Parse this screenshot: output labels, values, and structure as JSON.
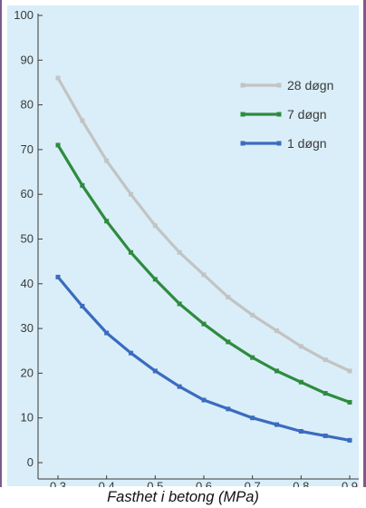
{
  "chart_data": {
    "type": "line",
    "x": [
      0.3,
      0.35,
      0.4,
      0.45,
      0.5,
      0.55,
      0.6,
      0.65,
      0.7,
      0.75,
      0.8,
      0.85,
      0.9
    ],
    "series": [
      {
        "name": "28 døgn",
        "color": "#c3c3c3",
        "values": [
          86,
          76.5,
          67.5,
          60,
          53,
          47,
          42,
          37,
          33,
          29.5,
          26,
          23,
          20.5
        ]
      },
      {
        "name": "7 døgn",
        "color": "#2e8b3e",
        "values": [
          71,
          62,
          54,
          47,
          41,
          35.5,
          31,
          27,
          23.5,
          20.5,
          18,
          15.5,
          13.5
        ]
      },
      {
        "name": "1 døgn",
        "color": "#3b6bbf",
        "values": [
          41.5,
          35,
          29,
          24.5,
          20.5,
          17,
          14,
          12,
          10,
          8.5,
          7,
          6,
          5
        ]
      }
    ],
    "xlabel": "Fasthet i betong (MPa)",
    "ylabel": "",
    "xlim": [
      0.3,
      0.9
    ],
    "ylim": [
      0,
      100
    ],
    "xticks": [
      "0,3",
      "0,4",
      "0,5",
      "0,6",
      "0,7",
      "0,8",
      "0,9"
    ],
    "yticks": [
      "0",
      "10",
      "20",
      "30",
      "40",
      "50",
      "60",
      "70",
      "80",
      "90",
      "100"
    ],
    "legend": "top-right",
    "grid": false,
    "plot_background": "#d9eef8"
  }
}
